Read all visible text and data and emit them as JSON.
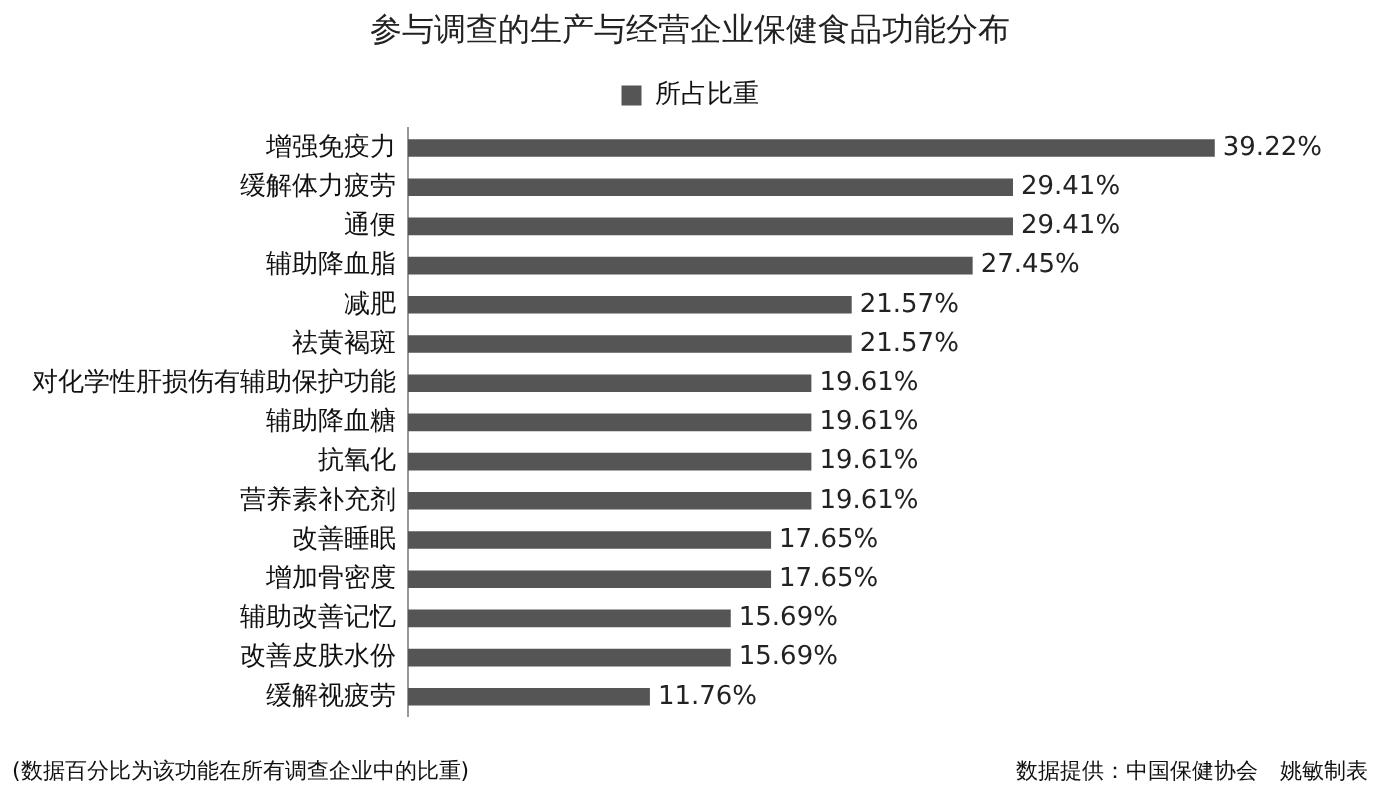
{
  "chart_data": {
    "type": "bar",
    "orientation": "horizontal",
    "title": "参与调查的生产与经营企业保健食品功能分布",
    "categories": [
      "增强免疫力",
      "缓解体力疲劳",
      "通便",
      "辅助降血脂",
      "减肥",
      "祛黄褐斑",
      "对化学性肝损伤有辅助保护功能",
      "辅助降血糖",
      "抗氧化",
      "营养素补充剂",
      "改善睡眠",
      "增加骨密度",
      "辅助改善记忆",
      "改善皮肤水份",
      "缓解视疲劳"
    ],
    "series": [
      {
        "name": "所占比重",
        "color": "#555555",
        "values": [
          39.22,
          29.41,
          29.41,
          27.45,
          21.57,
          21.57,
          19.61,
          19.61,
          19.61,
          19.61,
          17.65,
          17.65,
          15.69,
          15.69,
          11.76
        ],
        "value_labels": [
          "39.22%",
          "29.41%",
          "29.41%",
          "27.45%",
          "21.57%",
          "21.57%",
          "19.61%",
          "19.61%",
          "19.61%",
          "19.61%",
          "17.65%",
          "17.65%",
          "15.69%",
          "15.69%",
          "11.76%"
        ]
      }
    ],
    "legend": "top",
    "annotations": [
      "(数据百分比为该功能在所有调查企业中的比重)",
      "数据提供：中国保健协会　姚敏制表"
    ]
  }
}
